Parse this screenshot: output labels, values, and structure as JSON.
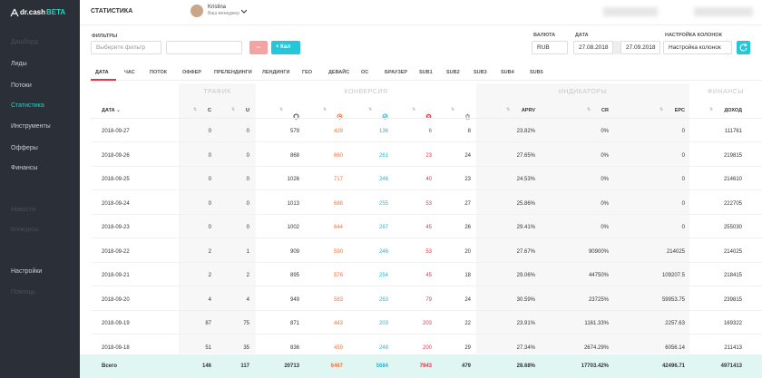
{
  "sidebar": {
    "logo": "dr.cash",
    "badge": "BETA",
    "menu": [
      {
        "label": "Дашборд",
        "state": "muted"
      },
      {
        "label": "Лиды",
        "state": "normal"
      },
      {
        "label": "Потоки",
        "state": "normal"
      },
      {
        "label": "Статистика",
        "state": "active"
      },
      {
        "label": "Инструменты",
        "state": "normal"
      },
      {
        "label": "Офферы",
        "state": "normal"
      },
      {
        "label": "Финансы",
        "state": "normal"
      },
      {
        "label": "Новости",
        "state": "muted"
      },
      {
        "label": "Конкурсы",
        "state": "muted"
      },
      {
        "label": "Настройки",
        "state": "normal"
      },
      {
        "label": "Помощь",
        "state": "muted"
      }
    ]
  },
  "header": {
    "title": "СТАТИСТИКА",
    "user": {
      "name": "Kristina",
      "role": "Ваш менеджер"
    }
  },
  "filters": {
    "label": "ФИЛЬТРЫ",
    "select": "Выберите фильтр",
    "add": "Кал"
  },
  "currency": {
    "label": "ВАЛЮТА",
    "value": "RUB"
  },
  "date": {
    "label": "ДАТА",
    "from": "27.08.2018",
    "to": "27.09.2018"
  },
  "columns_setting": {
    "label": "НАСТРОЙКА КОЛОНОК",
    "value": "Настройка колонок"
  },
  "tabs": [
    "ДАТА",
    "ЧАС",
    "ПОТОК",
    "ОФФЕР",
    "ПРЕЛЕНДИНГИ",
    "ЛЕНДИНГИ",
    "ГЕО",
    "ДЕВАЙС",
    "ОС",
    "БРАУЗЕР",
    "SUB1",
    "SUB2",
    "SUB3",
    "SUB4",
    "SUB5"
  ],
  "table": {
    "groups": [
      {
        "label": "ТРАФИК",
        "shade": true
      },
      {
        "label": "КОНВЕРСИЯ",
        "shade": false
      },
      {
        "label": "ИНДИКАТОРЫ",
        "shade": true
      },
      {
        "label": "ФИНАНСЫ",
        "shade": false
      }
    ],
    "columns": [
      {
        "label": "ДАТА"
      },
      {
        "label": "С"
      },
      {
        "label": "U"
      },
      {
        "icon": "circle",
        "color": "#333333"
      },
      {
        "icon": "clock",
        "color": "#f0743e"
      },
      {
        "icon": "check",
        "color": "#29b6d0"
      },
      {
        "icon": "cross",
        "color": "#e8344a"
      },
      {
        "icon": "trash",
        "color": "#888888"
      },
      {
        "label": "APRV"
      },
      {
        "label": "CR"
      },
      {
        "label": "EPC"
      },
      {
        "label": "ДОХОД"
      }
    ],
    "rows": [
      [
        "2018-09-27",
        "0",
        "0",
        "579",
        "429",
        "136",
        "6",
        "8",
        "23.82%",
        "0%",
        "0",
        "111761"
      ],
      [
        "2018-09-26",
        "0",
        "0",
        "868",
        "660",
        "261",
        "23",
        "24",
        "27.65%",
        "0%",
        "0",
        "219815"
      ],
      [
        "2018-09-25",
        "0",
        "0",
        "1026",
        "717",
        "246",
        "40",
        "23",
        "24.53%",
        "0%",
        "0",
        "214610"
      ],
      [
        "2018-09-24",
        "0",
        "0",
        "1013",
        "688",
        "255",
        "53",
        "27",
        "25.86%",
        "0%",
        "0",
        "222705"
      ],
      [
        "2018-09-23",
        "0",
        "0",
        "1002",
        "644",
        "287",
        "45",
        "26",
        "29.41%",
        "0%",
        "0",
        "255030"
      ],
      [
        "2018-09-22",
        "2",
        "1",
        "909",
        "590",
        "246",
        "53",
        "20",
        "27.67%",
        "90900%",
        "214025",
        "214025"
      ],
      [
        "2018-09-21",
        "2",
        "2",
        "895",
        "576",
        "254",
        "45",
        "18",
        "29.06%",
        "44750%",
        "109207.5",
        "218415"
      ],
      [
        "2018-09-20",
        "4",
        "4",
        "949",
        "583",
        "263",
        "79",
        "24",
        "30.59%",
        "23725%",
        "59953.75",
        "239815"
      ],
      [
        "2018-09-19",
        "87",
        "75",
        "871",
        "443",
        "203",
        "203",
        "22",
        "23.91%",
        "1161.33%",
        "2257.63",
        "169322"
      ],
      [
        "2018-09-18",
        "51",
        "35",
        "836",
        "459",
        "248",
        "200",
        "29",
        "27.34%",
        "2674.29%",
        "6056.14",
        "211413"
      ]
    ],
    "total": [
      "Всего",
      "146",
      "117",
      "20713",
      "6467",
      "5684",
      "7943",
      "479",
      "28.68%",
      "17703.42%",
      "42496.71",
      "4971413"
    ]
  }
}
